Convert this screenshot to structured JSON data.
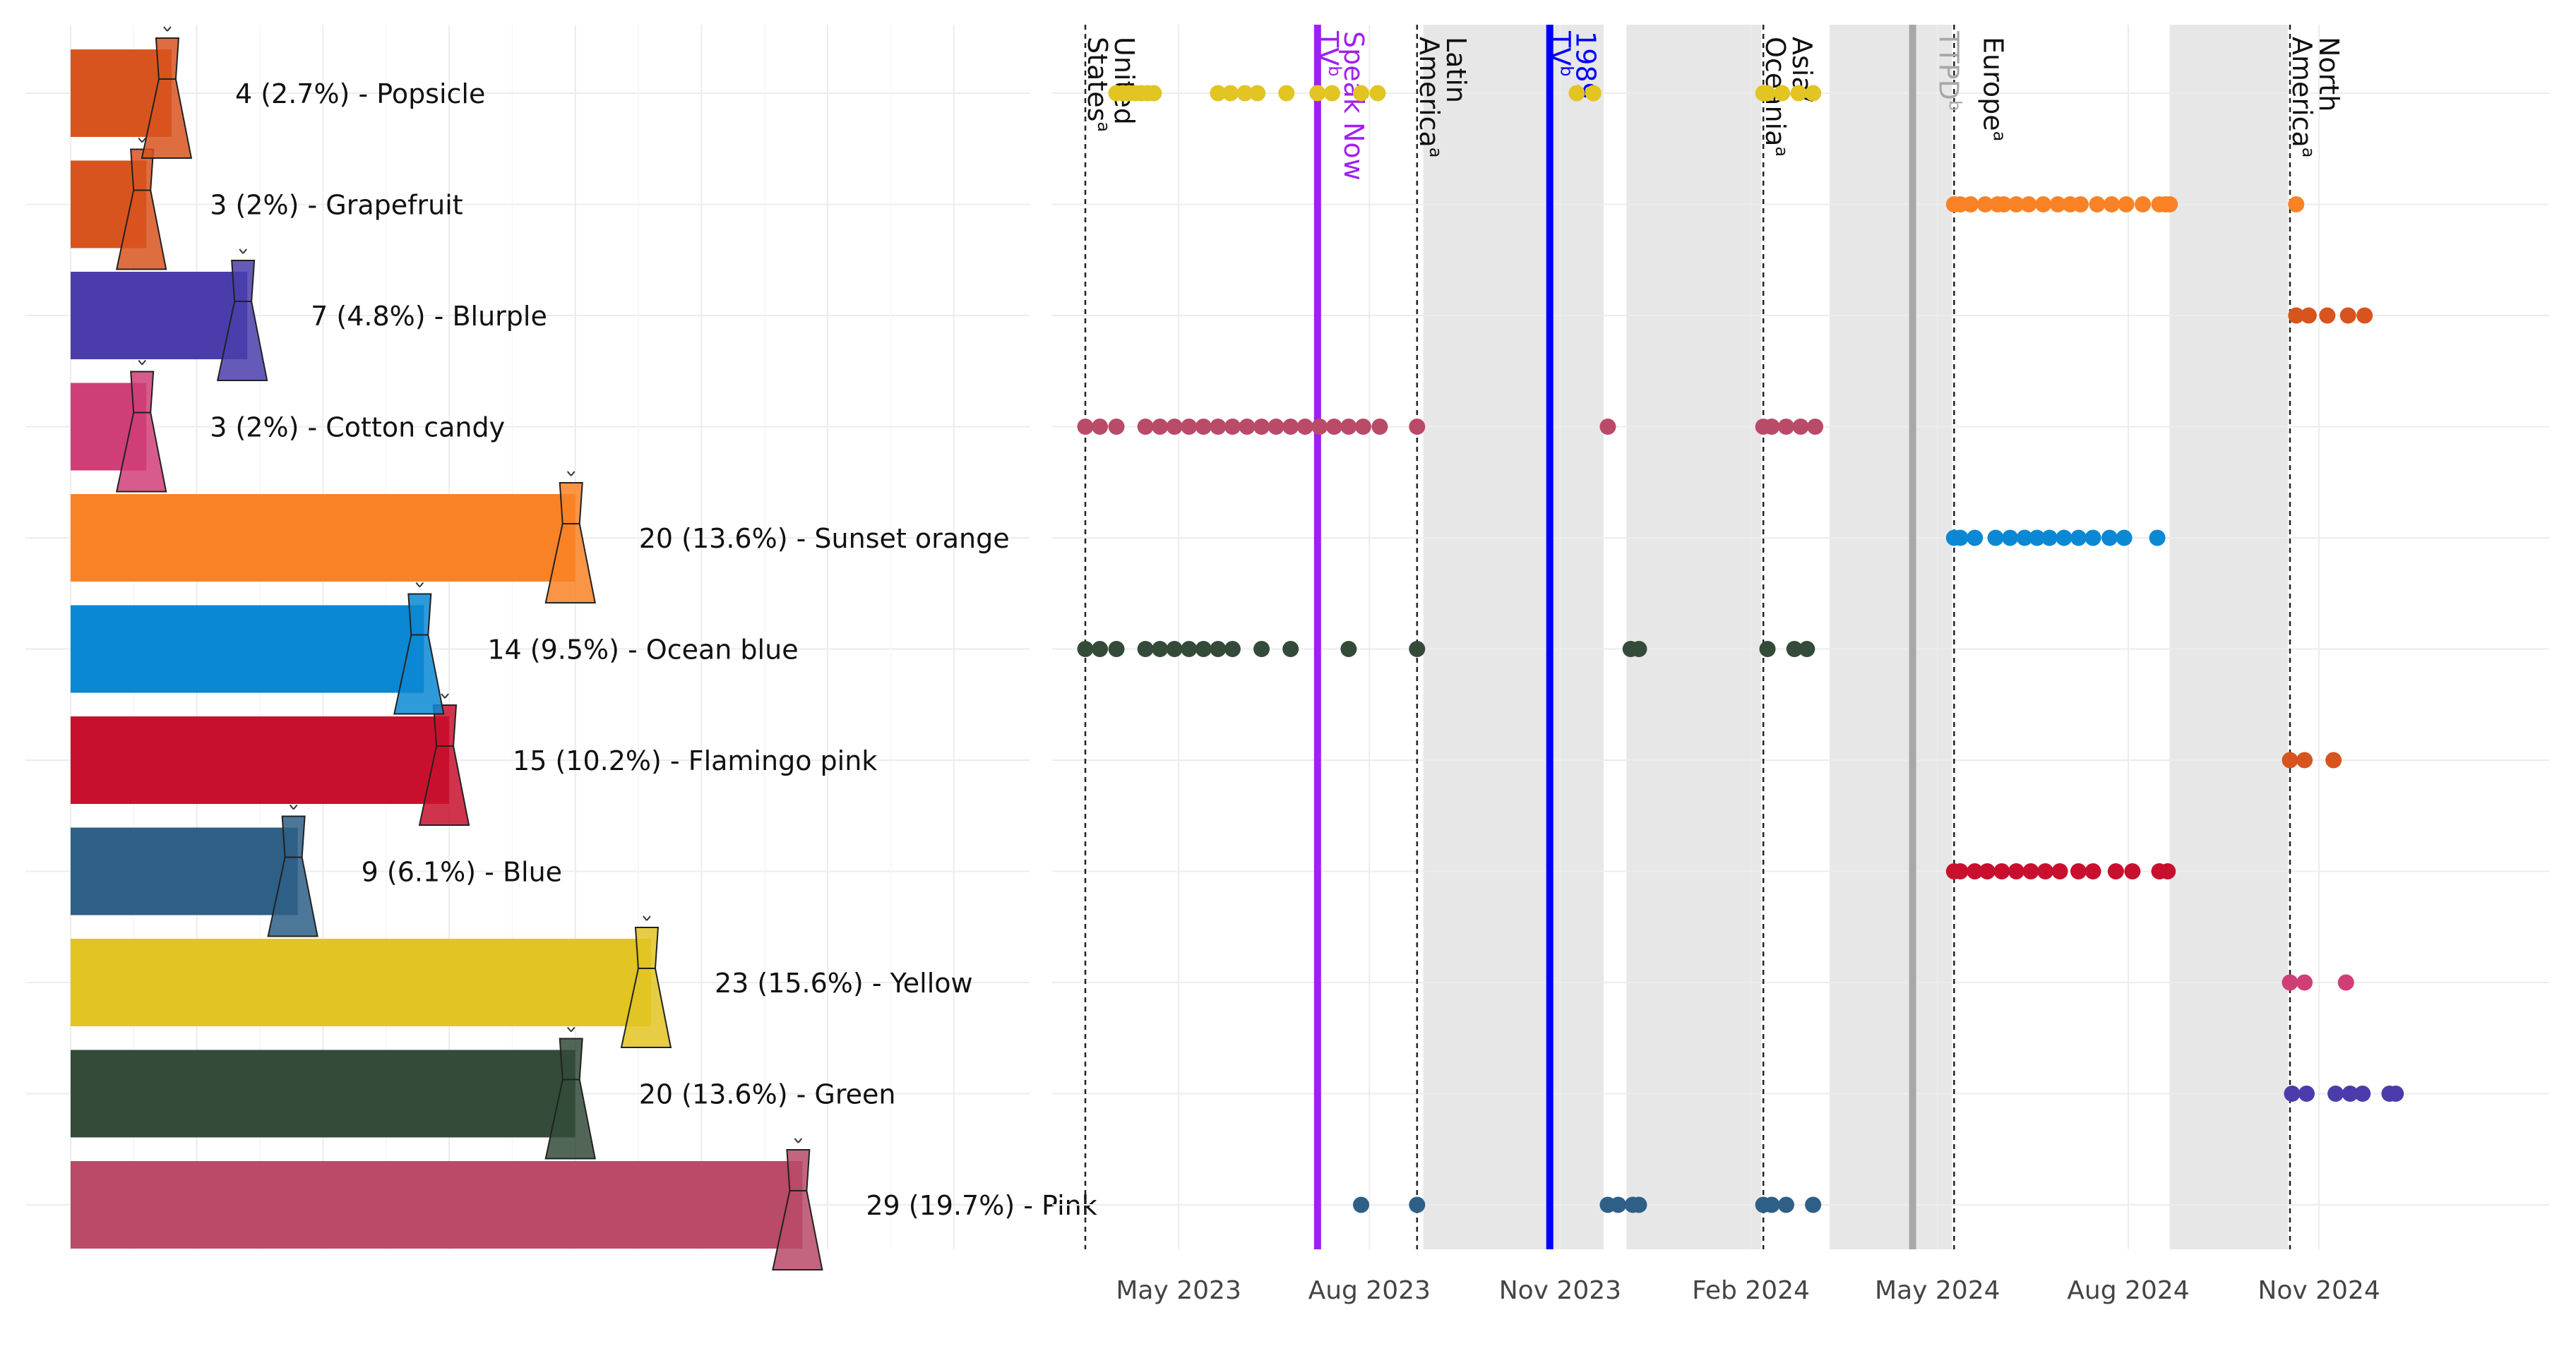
{
  "chart_data": [
    {
      "type": "bar",
      "orientation": "horizontal",
      "categories": [
        "Pink",
        "Green",
        "Yellow",
        "Blue",
        "Flamingo pink",
        "Ocean blue",
        "Sunset orange",
        "Cotton candy",
        "Blurple",
        "Grapefruit",
        "Popsicle"
      ],
      "values": [
        29,
        20,
        23,
        9,
        15,
        14,
        20,
        3,
        7,
        3,
        4
      ],
      "labels": [
        "29 (19.7%) - Pink",
        "20 (13.6%) - Green",
        "23 (15.6%) - Yellow",
        "9 (6.1%) - Blue",
        "15 (10.2%) - Flamingo pink",
        "14 (9.5%) - Ocean blue",
        "20 (13.6%) - Sunset orange",
        "3 (2%) - Cotton candy",
        "7 (4.8%) - Blurple",
        "3 (2%) - Grapefruit",
        "4 (2.7%) - Popsicle"
      ],
      "colors": [
        "#b94a68",
        "#344b3a",
        "#e2c422",
        "#2e5f87",
        "#c8102e",
        "#0a88d3",
        "#fa8226",
        "#d03e78",
        "#4a3dab",
        "#d8541e",
        "#d8541e"
      ],
      "grid": true,
      "xlim": [
        0,
        38
      ]
    },
    {
      "type": "scatter",
      "x_axis": {
        "type": "date",
        "range": [
          "2023-03-01",
          "2025-02-20"
        ],
        "ticks": [
          {
            "date": "2023-05-01",
            "label": "May 2023"
          },
          {
            "date": "2023-08-01",
            "label": "Aug 2023"
          },
          {
            "date": "2023-11-01",
            "label": "Nov 2023"
          },
          {
            "date": "2024-02-01",
            "label": "Feb 2024"
          },
          {
            "date": "2024-05-01",
            "label": "May 2024"
          },
          {
            "date": "2024-08-01",
            "label": "Aug 2024"
          },
          {
            "date": "2024-11-01",
            "label": "Nov 2024"
          }
        ]
      },
      "grid": true,
      "shaded_periods": [
        [
          "2023-08-27",
          "2023-11-22"
        ],
        [
          "2023-12-03",
          "2024-02-06"
        ],
        [
          "2024-03-10",
          "2024-05-08"
        ],
        [
          "2024-08-21",
          "2024-10-17"
        ]
      ],
      "legs": [
        {
          "date": "2023-03-17",
          "line1": "United",
          "line2": "States",
          "mark": "a"
        },
        {
          "date": "2023-08-24",
          "line1": "Latin",
          "line2": "America",
          "mark": "a"
        },
        {
          "date": "2024-02-07",
          "line1": "Asia/",
          "line2": "Oceania",
          "mark": "a"
        },
        {
          "date": "2024-05-09",
          "line1": "Europe",
          "line2": "",
          "mark": "a"
        },
        {
          "date": "2024-10-18",
          "line1": "North",
          "line2": "America",
          "mark": "a"
        }
      ],
      "releases": [
        {
          "date": "2023-07-07",
          "label": "Speak Now",
          "label2": "TV",
          "mark": "b",
          "color": "#a020f0"
        },
        {
          "date": "2023-10-27",
          "label": "1989",
          "label2": "TV",
          "mark": "b",
          "color": "#0000ff"
        },
        {
          "date": "2024-04-19",
          "label": "TTPD",
          "label2": "",
          "mark": "b",
          "color": "#a8a8a8"
        }
      ],
      "rows": [
        {
          "name": "Popsicle",
          "colors": [
            "#e2c422"
          ],
          "dates": [
            "2023-04-01",
            "2023-04-04",
            "2023-04-07",
            "2023-04-10",
            "2023-04-13",
            "2023-04-16",
            "2023-04-19",
            "2023-05-20",
            "2023-05-26",
            "2023-06-02",
            "2023-06-08",
            "2023-06-22",
            "2023-07-07",
            "2023-07-14",
            "2023-07-28",
            "2023-08-05",
            "2023-11-09",
            "2023-11-17",
            "2024-02-07",
            "2024-02-09",
            "2024-02-16",
            "2024-02-24",
            "2024-03-02"
          ]
        },
        {
          "name": "Grapefruit",
          "colors": [
            "#fa8226"
          ],
          "dates": [
            "2024-05-09",
            "2024-05-12",
            "2024-05-17",
            "2024-05-24",
            "2024-05-30",
            "2024-06-02",
            "2024-06-08",
            "2024-06-14",
            "2024-06-21",
            "2024-06-28",
            "2024-07-04",
            "2024-07-09",
            "2024-07-17",
            "2024-07-24",
            "2024-07-31",
            "2024-08-08",
            "2024-08-16",
            "2024-08-19",
            "2024-08-21",
            "2024-10-21"
          ]
        },
        {
          "name": "Blurple",
          "colors": [
            "#d8541e"
          ],
          "dates": [
            "2024-10-21",
            "2024-10-27",
            "2024-11-05",
            "2024-11-15",
            "2024-11-23"
          ]
        },
        {
          "name": "Cotton candy",
          "colors": [
            "#b94a68"
          ],
          "dates": [
            "2023-03-17",
            "2023-03-24",
            "2023-04-01",
            "2023-04-15",
            "2023-04-22",
            "2023-04-29",
            "2023-05-06",
            "2023-05-13",
            "2023-05-20",
            "2023-05-27",
            "2023-06-03",
            "2023-06-10",
            "2023-06-17",
            "2023-06-24",
            "2023-07-01",
            "2023-07-08",
            "2023-07-15",
            "2023-07-22",
            "2023-07-29",
            "2023-08-06",
            "2023-08-24",
            "2023-11-24",
            "2024-02-07",
            "2024-02-11",
            "2024-02-18",
            "2024-02-25",
            "2024-03-03"
          ]
        },
        {
          "name": "Sunset orange",
          "colors": [
            "#0a88d3"
          ],
          "dates": [
            "2024-05-09",
            "2024-05-12",
            "2024-05-19",
            "2024-05-29",
            "2024-06-05",
            "2024-06-12",
            "2024-06-18",
            "2024-06-24",
            "2024-07-01",
            "2024-07-08",
            "2024-07-15",
            "2024-07-23",
            "2024-07-30",
            "2024-08-15"
          ]
        },
        {
          "name": "Ocean blue",
          "colors": [
            "#344b3a"
          ],
          "dates": [
            "2023-03-17",
            "2023-03-24",
            "2023-04-01",
            "2023-04-15",
            "2023-04-22",
            "2023-04-29",
            "2023-05-06",
            "2023-05-13",
            "2023-05-20",
            "2023-05-27",
            "2023-06-10",
            "2023-06-24",
            "2023-07-22",
            "2023-08-24",
            "2023-12-05",
            "2023-12-09",
            "2024-02-09",
            "2024-02-22",
            "2024-02-28"
          ]
        },
        {
          "name": "Flamingo pink",
          "colors": [
            "#d8541e"
          ],
          "dates": [
            "2024-10-18",
            "2024-10-25",
            "2024-11-08"
          ]
        },
        {
          "name": "Blue",
          "colors": [
            "#c8102e"
          ],
          "dates": [
            "2024-05-09",
            "2024-05-12",
            "2024-05-19",
            "2024-05-25",
            "2024-06-01",
            "2024-06-08",
            "2024-06-15",
            "2024-06-22",
            "2024-06-29",
            "2024-07-08",
            "2024-07-15",
            "2024-07-26",
            "2024-08-03",
            "2024-08-16",
            "2024-08-20"
          ]
        },
        {
          "name": "Yellow",
          "colors": [
            "#d03e78"
          ],
          "dates": [
            "2024-10-18",
            "2024-10-25",
            "2024-11-14"
          ]
        },
        {
          "name": "Green",
          "colors": [
            "#4a3dab"
          ],
          "dates": [
            "2024-10-19",
            "2024-10-26",
            "2024-11-09",
            "2024-11-16",
            "2024-11-22",
            "2024-12-05",
            "2024-12-08"
          ]
        },
        {
          "name": "Pink",
          "colors": [
            "#2e5f87"
          ],
          "dates": [
            "2023-07-28",
            "2023-08-24",
            "2023-11-24",
            "2023-11-29",
            "2023-12-06",
            "2023-12-09",
            "2024-02-07",
            "2024-02-11",
            "2024-02-18",
            "2024-03-02"
          ]
        }
      ]
    }
  ]
}
